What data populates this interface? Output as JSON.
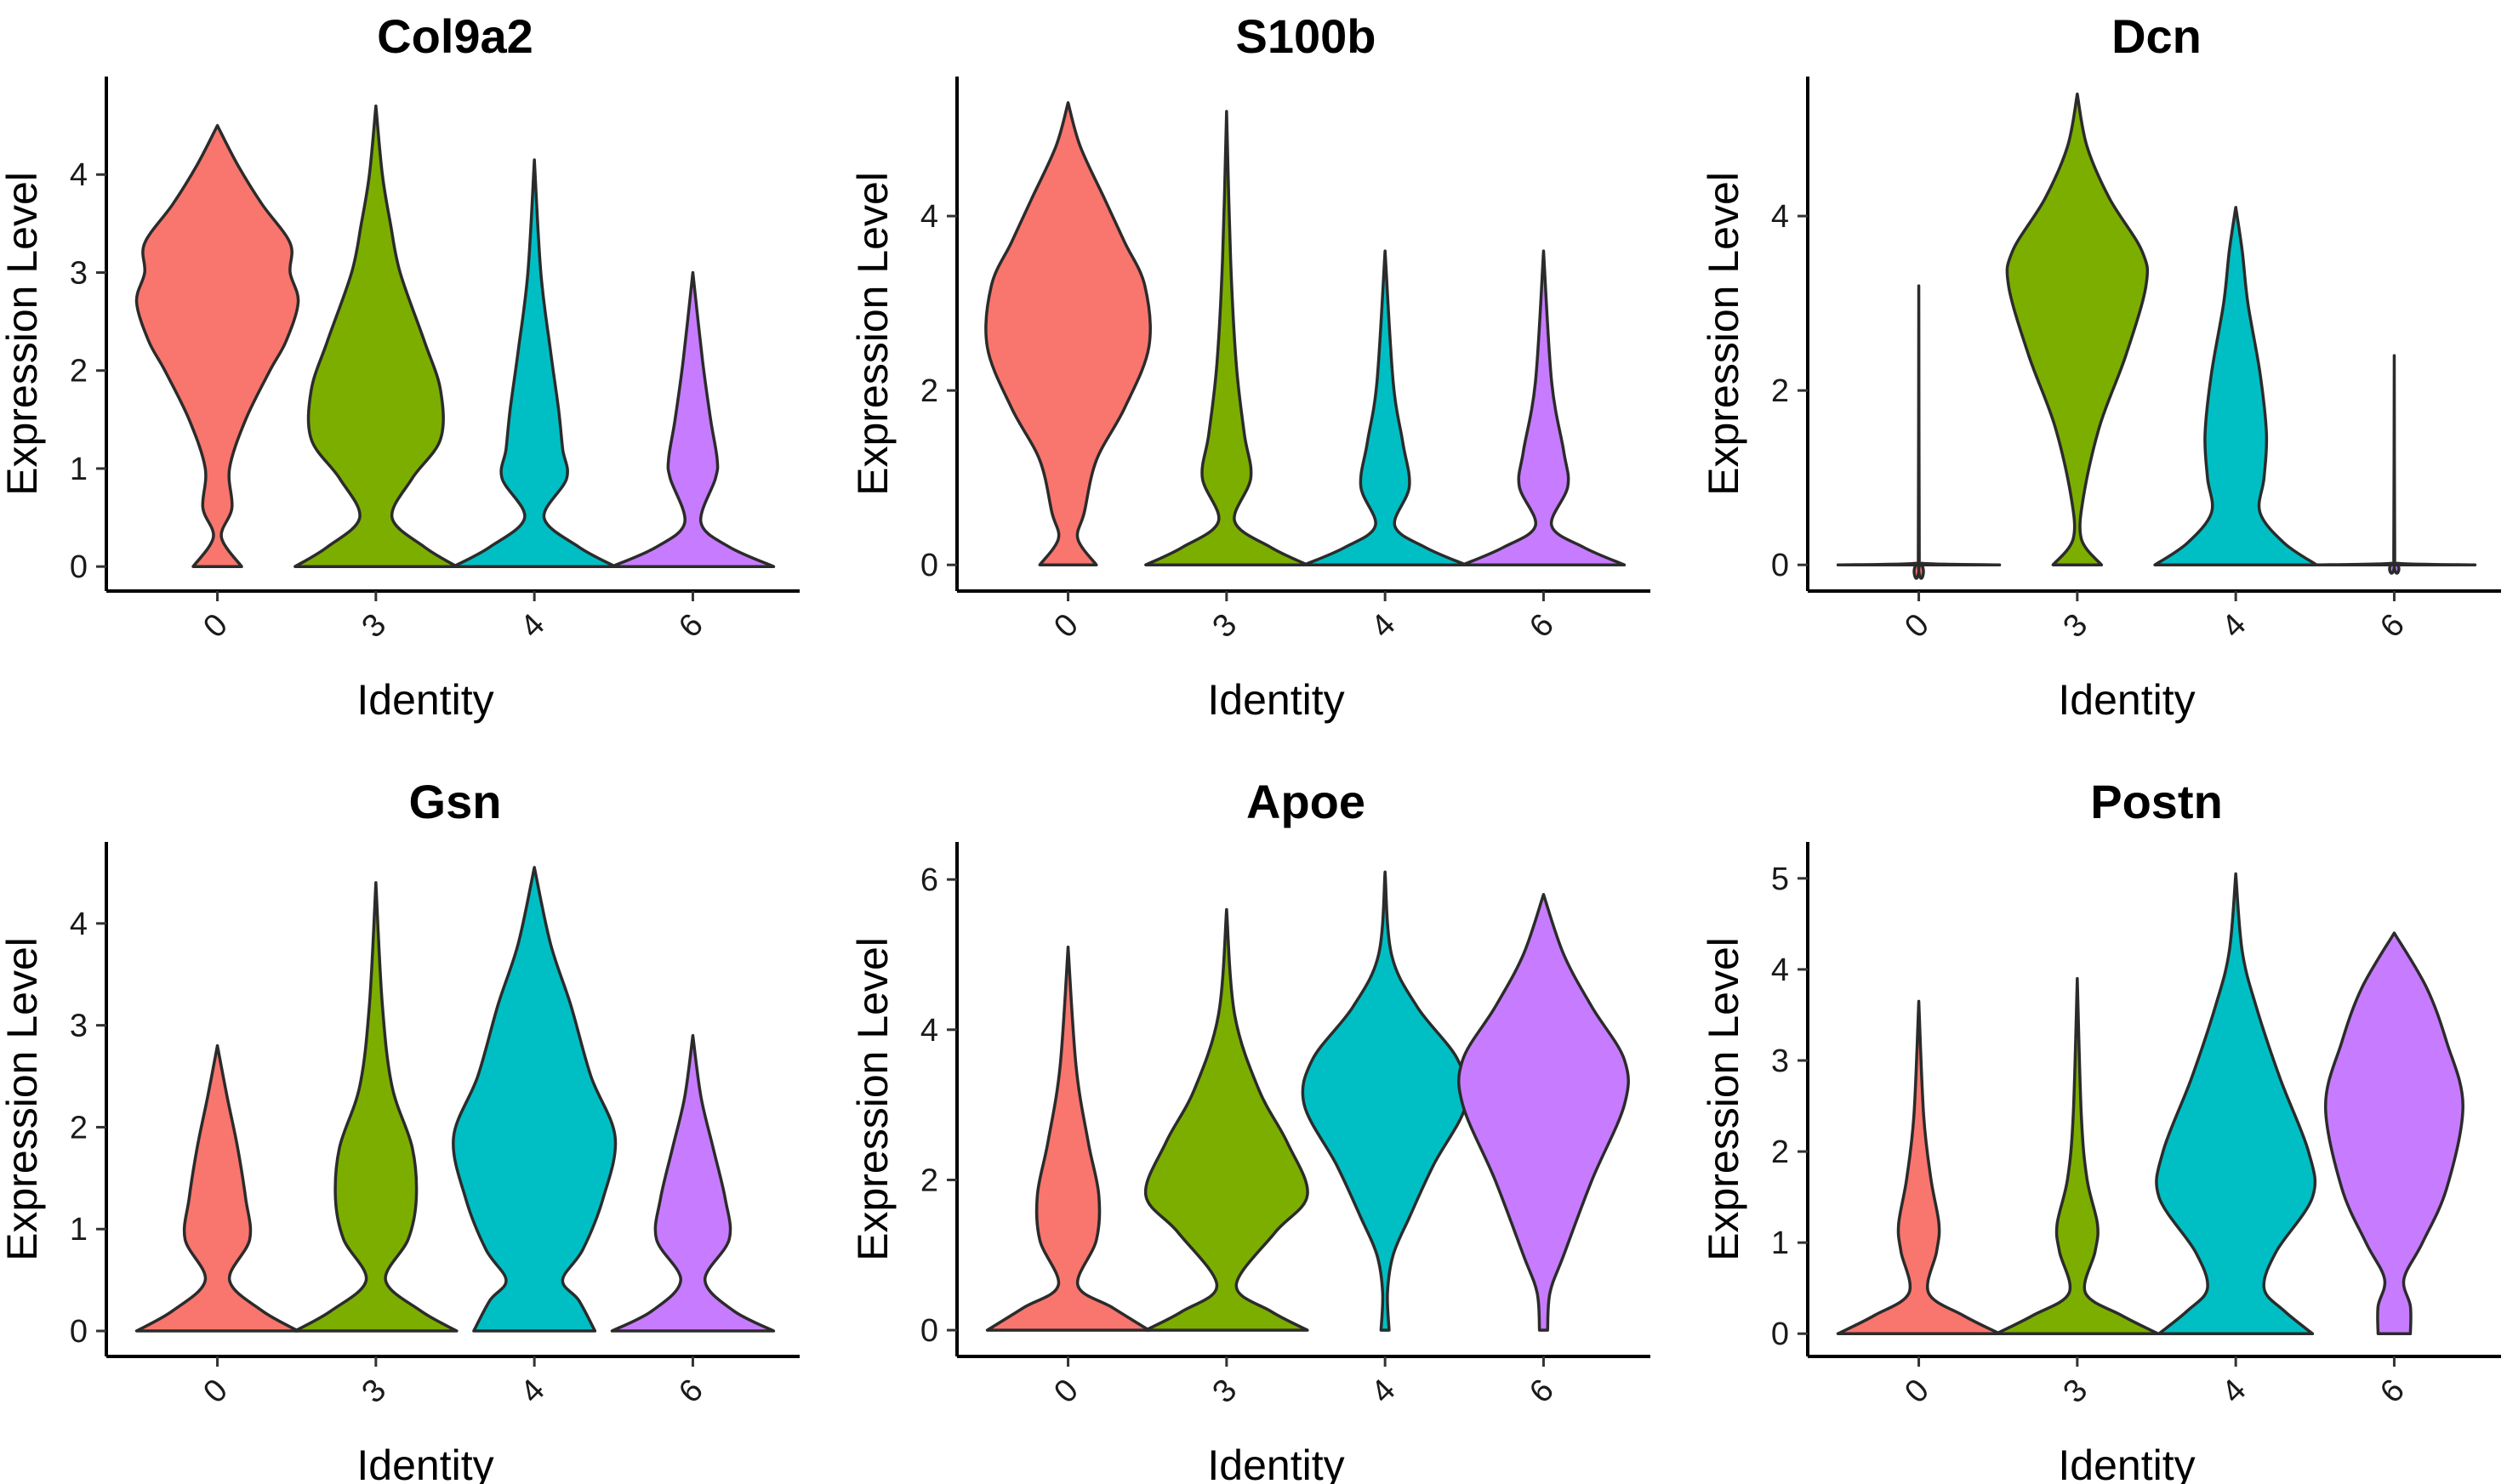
{
  "colors": {
    "0": "#F8766D",
    "3": "#7CAE00",
    "4": "#00BFC4",
    "6": "#C77CFF"
  },
  "chart_data": [
    {
      "type": "violin",
      "title": "Col9a2",
      "xlabel": "Identity",
      "ylabel": "Expression Level",
      "categories": [
        "0",
        "3",
        "4",
        "6"
      ],
      "ylim": [
        -0.25,
        5.0
      ],
      "yticks": [
        "0",
        "1",
        "2",
        "3",
        "4"
      ],
      "series": [
        {
          "name": "0",
          "max": 4.5,
          "nodes": [
            [
              0,
              0.3
            ],
            [
              0.3,
              0.05
            ],
            [
              0.6,
              0.18
            ],
            [
              1.0,
              0.15
            ],
            [
              1.5,
              0.35
            ],
            [
              2.0,
              0.65
            ],
            [
              2.3,
              0.85
            ],
            [
              2.7,
              1.0
            ],
            [
              3.0,
              0.9
            ],
            [
              3.3,
              0.9
            ],
            [
              3.7,
              0.55
            ],
            [
              4.1,
              0.25
            ],
            [
              4.5,
              0
            ]
          ]
        },
        {
          "name": "3",
          "max": 4.7,
          "nodes": [
            [
              0,
              1.0
            ],
            [
              0.2,
              0.6
            ],
            [
              0.5,
              0.2
            ],
            [
              0.9,
              0.45
            ],
            [
              1.3,
              0.8
            ],
            [
              1.8,
              0.8
            ],
            [
              2.3,
              0.6
            ],
            [
              3.0,
              0.3
            ],
            [
              3.5,
              0.18
            ],
            [
              4.0,
              0.08
            ],
            [
              4.7,
              0
            ]
          ]
        },
        {
          "name": "4",
          "max": 4.15,
          "nodes": [
            [
              0,
              1.0
            ],
            [
              0.2,
              0.55
            ],
            [
              0.5,
              0.12
            ],
            [
              0.9,
              0.4
            ],
            [
              1.2,
              0.35
            ],
            [
              1.6,
              0.3
            ],
            [
              2.2,
              0.2
            ],
            [
              3.0,
              0.08
            ],
            [
              4.15,
              0
            ]
          ]
        },
        {
          "name": "6",
          "max": 3.0,
          "nodes": [
            [
              0,
              1.0
            ],
            [
              0.2,
              0.45
            ],
            [
              0.45,
              0.1
            ],
            [
              0.9,
              0.28
            ],
            [
              1.1,
              0.3
            ],
            [
              1.5,
              0.22
            ],
            [
              2.1,
              0.12
            ],
            [
              3.0,
              0
            ]
          ]
        }
      ]
    },
    {
      "type": "violin",
      "title": "S100b",
      "xlabel": "Identity",
      "ylabel": "Expression Level",
      "categories": [
        "0",
        "3",
        "4",
        "6"
      ],
      "ylim": [
        -0.3,
        5.6
      ],
      "yticks": [
        "0",
        "2",
        "4"
      ],
      "series": [
        {
          "name": "0",
          "max": 5.3,
          "nodes": [
            [
              0,
              0.35
            ],
            [
              0.3,
              0.12
            ],
            [
              0.6,
              0.2
            ],
            [
              1.2,
              0.35
            ],
            [
              1.8,
              0.7
            ],
            [
              2.5,
              1.0
            ],
            [
              3.2,
              0.95
            ],
            [
              3.7,
              0.7
            ],
            [
              4.2,
              0.45
            ],
            [
              4.8,
              0.15
            ],
            [
              5.3,
              0
            ]
          ]
        },
        {
          "name": "3",
          "max": 5.2,
          "nodes": [
            [
              0,
              1.0
            ],
            [
              0.2,
              0.55
            ],
            [
              0.5,
              0.1
            ],
            [
              1.0,
              0.3
            ],
            [
              1.5,
              0.22
            ],
            [
              2.3,
              0.12
            ],
            [
              3.5,
              0.05
            ],
            [
              5.2,
              0
            ]
          ]
        },
        {
          "name": "4",
          "max": 3.6,
          "nodes": [
            [
              0,
              1.0
            ],
            [
              0.2,
              0.5
            ],
            [
              0.45,
              0.12
            ],
            [
              0.9,
              0.3
            ],
            [
              1.4,
              0.22
            ],
            [
              2.1,
              0.1
            ],
            [
              3.6,
              0
            ]
          ]
        },
        {
          "name": "6",
          "max": 3.6,
          "nodes": [
            [
              0,
              1.0
            ],
            [
              0.2,
              0.5
            ],
            [
              0.45,
              0.1
            ],
            [
              0.9,
              0.3
            ],
            [
              1.3,
              0.25
            ],
            [
              2.1,
              0.1
            ],
            [
              3.6,
              0
            ]
          ]
        }
      ]
    },
    {
      "type": "violin",
      "title": "Dcn",
      "xlabel": "Identity",
      "ylabel": "Expression Level",
      "categories": [
        "0",
        "3",
        "4",
        "6"
      ],
      "ylim": [
        -0.3,
        5.6
      ],
      "yticks": [
        "0",
        "2",
        "4"
      ],
      "series": [
        {
          "name": "0",
          "max": 3.2,
          "nodes": [
            [
              0,
              1.0
            ],
            [
              0.02,
              0.02
            ],
            [
              0.1,
              0.006
            ],
            [
              3.2,
              0
            ]
          ]
        },
        {
          "name": "3",
          "max": 5.4,
          "nodes": [
            [
              0,
              0.3
            ],
            [
              0.3,
              0.05
            ],
            [
              0.8,
              0.08
            ],
            [
              1.6,
              0.28
            ],
            [
              2.4,
              0.6
            ],
            [
              3.2,
              0.85
            ],
            [
              3.6,
              0.8
            ],
            [
              4.2,
              0.4
            ],
            [
              4.8,
              0.12
            ],
            [
              5.4,
              0
            ]
          ]
        },
        {
          "name": "4",
          "max": 4.1,
          "nodes": [
            [
              0,
              1.0
            ],
            [
              0.25,
              0.6
            ],
            [
              0.6,
              0.3
            ],
            [
              1.0,
              0.35
            ],
            [
              1.5,
              0.38
            ],
            [
              2.2,
              0.3
            ],
            [
              3.0,
              0.15
            ],
            [
              3.6,
              0.08
            ],
            [
              4.1,
              0
            ]
          ]
        },
        {
          "name": "6",
          "max": 2.4,
          "nodes": [
            [
              0,
              1.0
            ],
            [
              0.02,
              0.02
            ],
            [
              0.1,
              0.006
            ],
            [
              2.4,
              0
            ]
          ]
        }
      ]
    },
    {
      "type": "violin",
      "title": "Gsn",
      "xlabel": "Identity",
      "ylabel": "Expression Level",
      "categories": [
        "0",
        "3",
        "4",
        "6"
      ],
      "ylim": [
        -0.25,
        4.8
      ],
      "yticks": [
        "0",
        "1",
        "2",
        "3",
        "4"
      ],
      "series": [
        {
          "name": "0",
          "max": 2.8,
          "nodes": [
            [
              0,
              1.0
            ],
            [
              0.2,
              0.55
            ],
            [
              0.5,
              0.15
            ],
            [
              0.9,
              0.4
            ],
            [
              1.3,
              0.35
            ],
            [
              1.8,
              0.25
            ],
            [
              2.3,
              0.12
            ],
            [
              2.8,
              0
            ]
          ]
        },
        {
          "name": "3",
          "max": 4.4,
          "nodes": [
            [
              0,
              1.0
            ],
            [
              0.2,
              0.55
            ],
            [
              0.5,
              0.12
            ],
            [
              0.9,
              0.4
            ],
            [
              1.3,
              0.5
            ],
            [
              1.8,
              0.45
            ],
            [
              2.4,
              0.2
            ],
            [
              3.2,
              0.08
            ],
            [
              4.4,
              0
            ]
          ]
        },
        {
          "name": "4",
          "max": 4.55,
          "nodes": [
            [
              0,
              0.75
            ],
            [
              0.3,
              0.55
            ],
            [
              0.5,
              0.35
            ],
            [
              0.8,
              0.6
            ],
            [
              1.3,
              0.85
            ],
            [
              1.9,
              1.0
            ],
            [
              2.5,
              0.7
            ],
            [
              3.2,
              0.45
            ],
            [
              3.8,
              0.2
            ],
            [
              4.55,
              0
            ]
          ]
        },
        {
          "name": "6",
          "max": 2.9,
          "nodes": [
            [
              0,
              1.0
            ],
            [
              0.2,
              0.5
            ],
            [
              0.5,
              0.15
            ],
            [
              0.9,
              0.45
            ],
            [
              1.3,
              0.4
            ],
            [
              1.8,
              0.25
            ],
            [
              2.3,
              0.1
            ],
            [
              2.9,
              0
            ]
          ]
        }
      ]
    },
    {
      "type": "violin",
      "title": "Apoe",
      "xlabel": "Identity",
      "ylabel": "Expression Level",
      "categories": [
        "0",
        "3",
        "4",
        "6"
      ],
      "ylim": [
        -0.35,
        6.5
      ],
      "yticks": [
        "0",
        "2",
        "4",
        "6"
      ],
      "series": [
        {
          "name": "0",
          "max": 5.1,
          "nodes": [
            [
              0,
              1.0
            ],
            [
              0.3,
              0.55
            ],
            [
              0.6,
              0.12
            ],
            [
              1.2,
              0.35
            ],
            [
              1.8,
              0.38
            ],
            [
              2.5,
              0.25
            ],
            [
              3.5,
              0.1
            ],
            [
              5.1,
              0
            ]
          ]
        },
        {
          "name": "3",
          "max": 5.6,
          "nodes": [
            [
              0,
              1.0
            ],
            [
              0.25,
              0.55
            ],
            [
              0.6,
              0.12
            ],
            [
              1.3,
              0.6
            ],
            [
              1.8,
              1.0
            ],
            [
              2.5,
              0.75
            ],
            [
              3.2,
              0.4
            ],
            [
              4.2,
              0.1
            ],
            [
              5.6,
              0
            ]
          ]
        },
        {
          "name": "4",
          "max": 6.1,
          "nodes": [
            [
              0,
              0.05
            ],
            [
              0.5,
              0.03
            ],
            [
              1.0,
              0.1
            ],
            [
              1.5,
              0.3
            ],
            [
              2.2,
              0.6
            ],
            [
              3.0,
              1.0
            ],
            [
              3.6,
              0.9
            ],
            [
              4.3,
              0.4
            ],
            [
              5.0,
              0.08
            ],
            [
              6.1,
              0
            ]
          ]
        },
        {
          "name": "6",
          "max": 5.8,
          "nodes": [
            [
              0,
              0.05
            ],
            [
              0.5,
              0.08
            ],
            [
              1.0,
              0.25
            ],
            [
              2.0,
              0.6
            ],
            [
              3.0,
              1.0
            ],
            [
              3.6,
              1.0
            ],
            [
              4.3,
              0.6
            ],
            [
              5.0,
              0.25
            ],
            [
              5.8,
              0
            ]
          ]
        }
      ]
    },
    {
      "type": "violin",
      "title": "Postn",
      "xlabel": "Identity",
      "ylabel": "Expression Level",
      "categories": [
        "0",
        "3",
        "4",
        "6"
      ],
      "ylim": [
        -0.25,
        5.4
      ],
      "yticks": [
        "0",
        "1",
        "2",
        "3",
        "4",
        "5"
      ],
      "series": [
        {
          "name": "0",
          "max": 3.65,
          "nodes": [
            [
              0,
              1.0
            ],
            [
              0.2,
              0.55
            ],
            [
              0.45,
              0.12
            ],
            [
              0.9,
              0.22
            ],
            [
              1.2,
              0.25
            ],
            [
              1.7,
              0.15
            ],
            [
              2.4,
              0.06
            ],
            [
              3.65,
              0
            ]
          ]
        },
        {
          "name": "3",
          "max": 3.9,
          "nodes": [
            [
              0,
              1.0
            ],
            [
              0.2,
              0.55
            ],
            [
              0.45,
              0.1
            ],
            [
              0.9,
              0.22
            ],
            [
              1.2,
              0.25
            ],
            [
              1.7,
              0.12
            ],
            [
              2.4,
              0.05
            ],
            [
              3.9,
              0
            ]
          ]
        },
        {
          "name": "4",
          "max": 5.05,
          "nodes": [
            [
              0,
              0.95
            ],
            [
              0.25,
              0.6
            ],
            [
              0.5,
              0.35
            ],
            [
              0.9,
              0.5
            ],
            [
              1.5,
              0.95
            ],
            [
              2.0,
              0.9
            ],
            [
              2.8,
              0.55
            ],
            [
              3.6,
              0.25
            ],
            [
              4.2,
              0.08
            ],
            [
              5.05,
              0
            ]
          ]
        },
        {
          "name": "6",
          "max": 4.4,
          "nodes": [
            [
              0,
              0.2
            ],
            [
              0.3,
              0.2
            ],
            [
              0.6,
              0.12
            ],
            [
              1.0,
              0.35
            ],
            [
              1.6,
              0.65
            ],
            [
              2.5,
              0.85
            ],
            [
              3.2,
              0.65
            ],
            [
              3.8,
              0.4
            ],
            [
              4.4,
              0
            ]
          ]
        }
      ]
    }
  ]
}
